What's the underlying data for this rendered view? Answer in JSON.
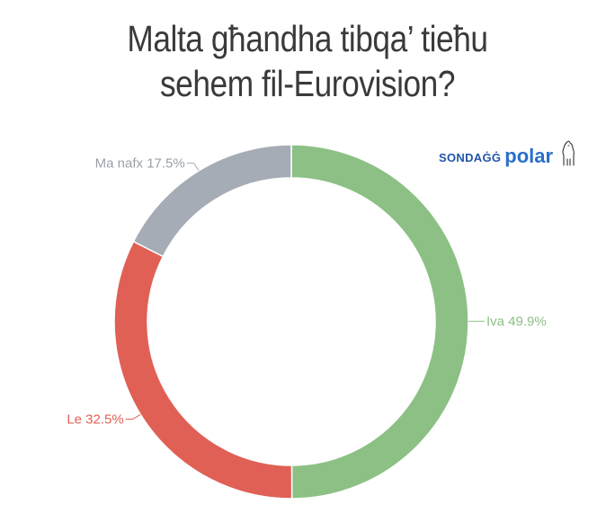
{
  "title_line1": "Malta għandha tibqa’ tieħu",
  "title_line2": "sehem fil-Eurovision?",
  "brand": {
    "sondagg": "SONDAĠĠ",
    "polar": "polar",
    "logo_icon": "polar-bear-icon"
  },
  "chart_data": {
    "type": "pie",
    "variant": "donut",
    "slices": [
      {
        "label": "Iva",
        "value": 49.9,
        "display": "Iva 49.9%",
        "color": "#8cc084"
      },
      {
        "label": "Le",
        "value": 32.5,
        "display": "Le 32.5%",
        "color": "#e06055"
      },
      {
        "label": "Ma nafx",
        "value": 17.5,
        "display": "Ma nafx 17.5%",
        "color": "#a6acb5"
      }
    ],
    "start_angle": "12 o'clock, clockwise",
    "legend": "none"
  }
}
